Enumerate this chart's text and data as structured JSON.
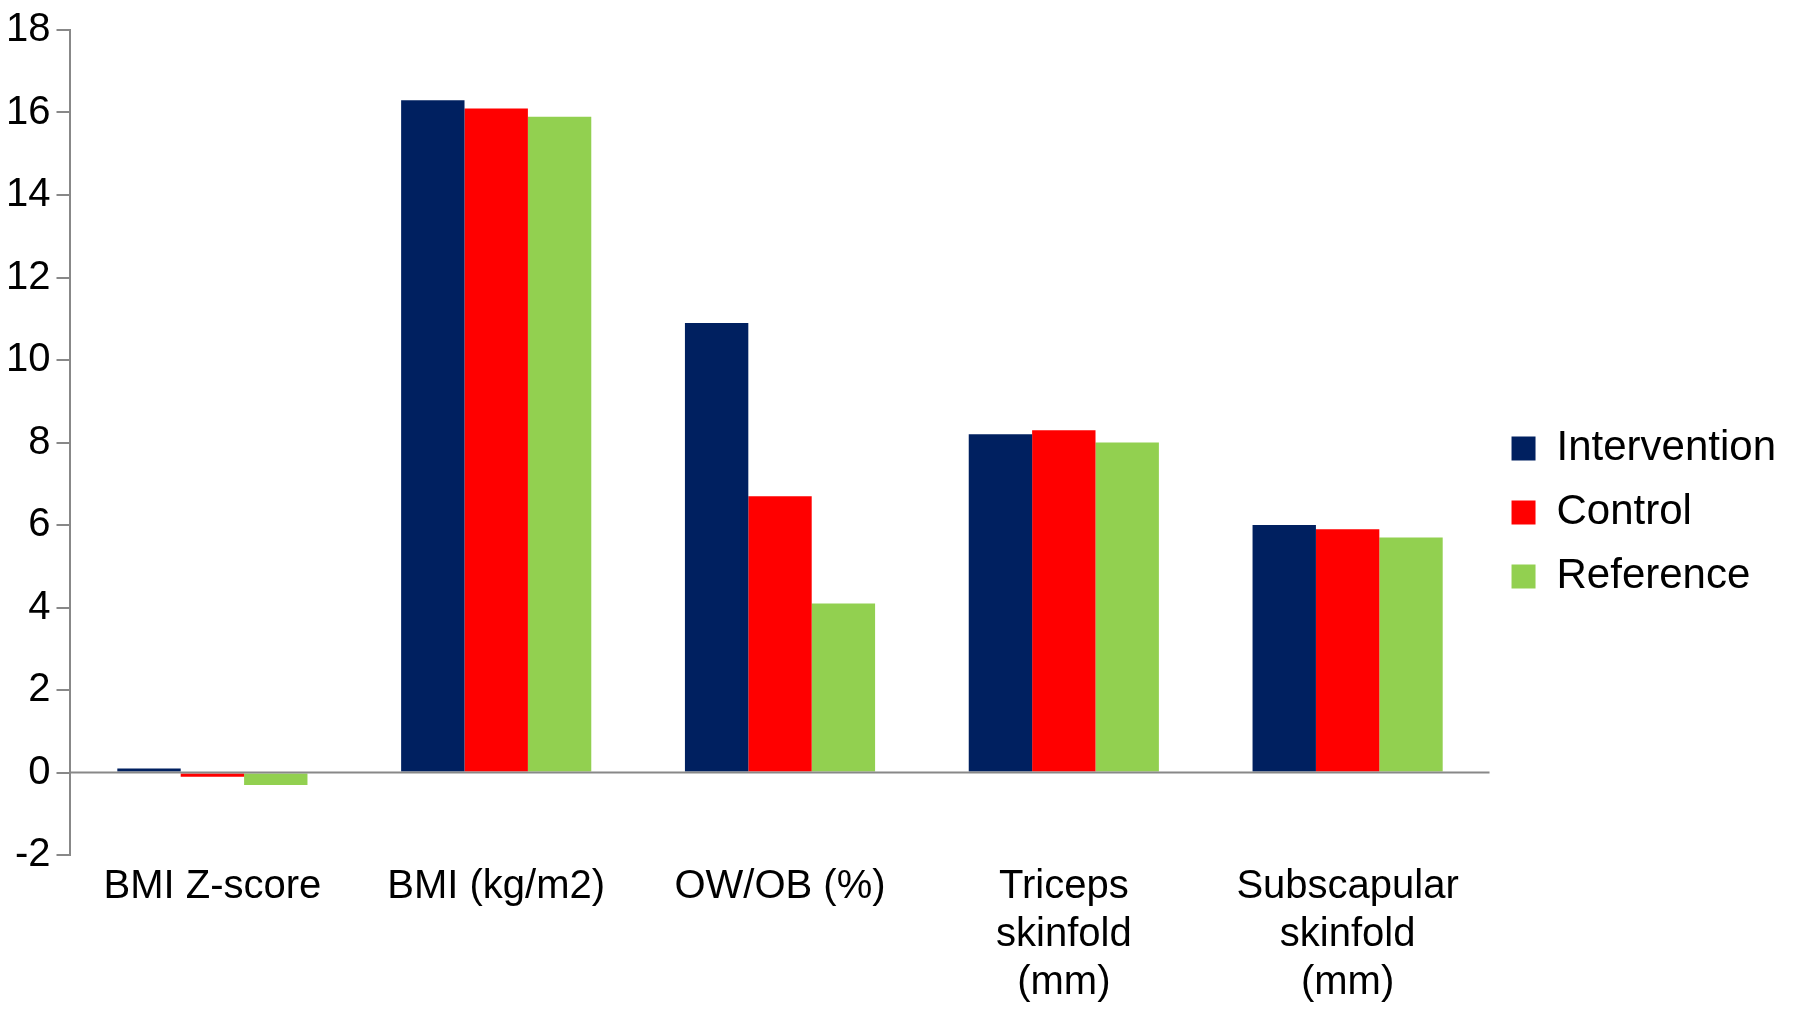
{
  "chart_data": {
    "type": "bar",
    "categories": [
      "BMI Z-score",
      "BMI (kg/m2)",
      "OW/OB (%)",
      "Triceps skinfold (mm)",
      "Subscapular skinfold (mm)"
    ],
    "series": [
      {
        "name": "Intervention",
        "color": "#002060",
        "values": [
          0.1,
          16.3,
          10.9,
          8.2,
          6.0
        ]
      },
      {
        "name": "Control",
        "color": "#ff0000",
        "values": [
          -0.1,
          16.1,
          6.7,
          8.3,
          5.9
        ]
      },
      {
        "name": "Reference",
        "color": "#92d050",
        "values": [
          -0.3,
          15.9,
          4.1,
          8.0,
          5.7
        ]
      }
    ],
    "ylim": [
      -2,
      18
    ],
    "yticks": [
      -2,
      0,
      2,
      4,
      6,
      8,
      10,
      12,
      14,
      16,
      18
    ],
    "grid": false,
    "legend": "right"
  }
}
